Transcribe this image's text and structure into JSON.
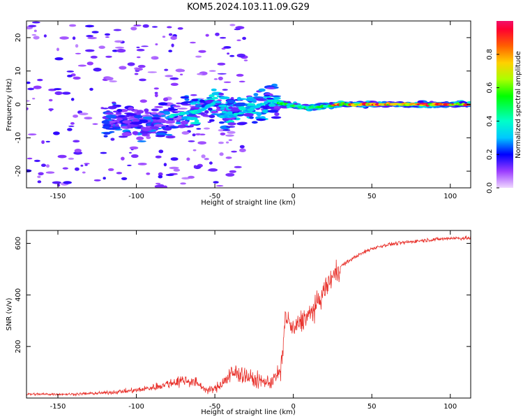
{
  "title": "KOM5.2024.103.11.09.G29",
  "chart_data": [
    {
      "type": "heatmap",
      "xlabel": "Height of straight line (km)",
      "ylabel": "Frequency (Hz)",
      "xlim": [
        -170,
        113
      ],
      "ylim": [
        -25,
        25
      ],
      "xticks": [
        -150,
        -100,
        -50,
        0,
        50,
        100
      ],
      "yticks": [
        -20,
        -10,
        0,
        10,
        20
      ],
      "colorbar": {
        "label": "Normalized spectral amplitude",
        "range": [
          0,
          1
        ],
        "ticks": [
          0.0,
          0.2,
          0.4,
          0.6,
          0.8
        ],
        "colormap": "gist_rainbow_r"
      },
      "ridge": [
        {
          "x": -110,
          "y": -5
        },
        {
          "x": -90,
          "y": -6
        },
        {
          "x": -75,
          "y": -3
        },
        {
          "x": -60,
          "y": -2
        },
        {
          "x": -48,
          "y": 1
        },
        {
          "x": -42,
          "y": -4
        },
        {
          "x": -30,
          "y": -2
        },
        {
          "x": -15,
          "y": 1
        },
        {
          "x": -5,
          "y": 0
        },
        {
          "x": 10,
          "y": -1
        },
        {
          "x": 30,
          "y": 0
        },
        {
          "x": 60,
          "y": 0
        },
        {
          "x": 100,
          "y": 0
        },
        {
          "x": 113,
          "y": 0
        }
      ]
    },
    {
      "type": "line",
      "xlabel": "Height of straight line (km)",
      "ylabel": "SNR (v/v)",
      "xlim": [
        -170,
        113
      ],
      "ylim": [
        0,
        650
      ],
      "xticks": [
        -150,
        -100,
        -50,
        0,
        50,
        100
      ],
      "yticks": [
        200,
        400,
        600
      ],
      "color": "#e8302a",
      "trend": [
        {
          "x": -170,
          "y": 15
        },
        {
          "x": -140,
          "y": 15
        },
        {
          "x": -120,
          "y": 20
        },
        {
          "x": -100,
          "y": 30
        },
        {
          "x": -90,
          "y": 40
        },
        {
          "x": -80,
          "y": 55
        },
        {
          "x": -70,
          "y": 70
        },
        {
          "x": -62,
          "y": 60
        },
        {
          "x": -55,
          "y": 30
        },
        {
          "x": -50,
          "y": 35
        },
        {
          "x": -45,
          "y": 60
        },
        {
          "x": -40,
          "y": 90
        },
        {
          "x": -35,
          "y": 100
        },
        {
          "x": -25,
          "y": 70
        },
        {
          "x": -15,
          "y": 60
        },
        {
          "x": -8,
          "y": 100
        },
        {
          "x": -5,
          "y": 320
        },
        {
          "x": 0,
          "y": 260
        },
        {
          "x": 5,
          "y": 300
        },
        {
          "x": 10,
          "y": 320
        },
        {
          "x": 15,
          "y": 360
        },
        {
          "x": 20,
          "y": 420
        },
        {
          "x": 25,
          "y": 470
        },
        {
          "x": 30,
          "y": 510
        },
        {
          "x": 40,
          "y": 550
        },
        {
          "x": 50,
          "y": 580
        },
        {
          "x": 60,
          "y": 595
        },
        {
          "x": 80,
          "y": 610
        },
        {
          "x": 100,
          "y": 620
        },
        {
          "x": 113,
          "y": 620
        }
      ]
    }
  ]
}
